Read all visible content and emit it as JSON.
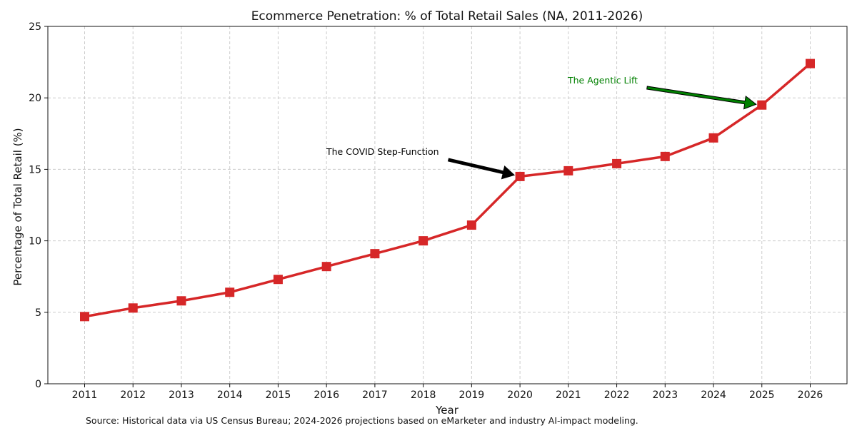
{
  "chart_data": {
    "type": "line",
    "title": "Ecommerce Penetration: % of Total Retail Sales (NA, 2011-2026)",
    "xlabel": "Year",
    "ylabel": "Percentage of Total Retail (%)",
    "source": "Source: Historical data via US Census Bureau; 2024-2026 projections based on eMarketer and industry AI-impact modeling.",
    "categories": [
      "2011",
      "2012",
      "2013",
      "2014",
      "2015",
      "2016",
      "2017",
      "2018",
      "2019",
      "2020",
      "2021",
      "2022",
      "2023",
      "2024",
      "2025",
      "2026"
    ],
    "values": [
      4.7,
      5.3,
      5.8,
      6.4,
      7.3,
      8.2,
      9.1,
      10.0,
      11.1,
      14.5,
      14.9,
      15.4,
      15.9,
      17.2,
      19.5,
      22.4
    ],
    "ylim": [
      0,
      25
    ],
    "yticks": [
      0,
      5,
      10,
      15,
      20,
      25
    ],
    "grid": true,
    "line_color": "#d62728",
    "marker": "square",
    "annotations": [
      {
        "text": "The COVID Step-Function",
        "target_category": "2020",
        "color": "#000000",
        "arrow_color": "#000000"
      },
      {
        "text": "The Agentic Lift",
        "target_category": "2025",
        "color": "#008000",
        "arrow_color": "#008000"
      }
    ]
  }
}
